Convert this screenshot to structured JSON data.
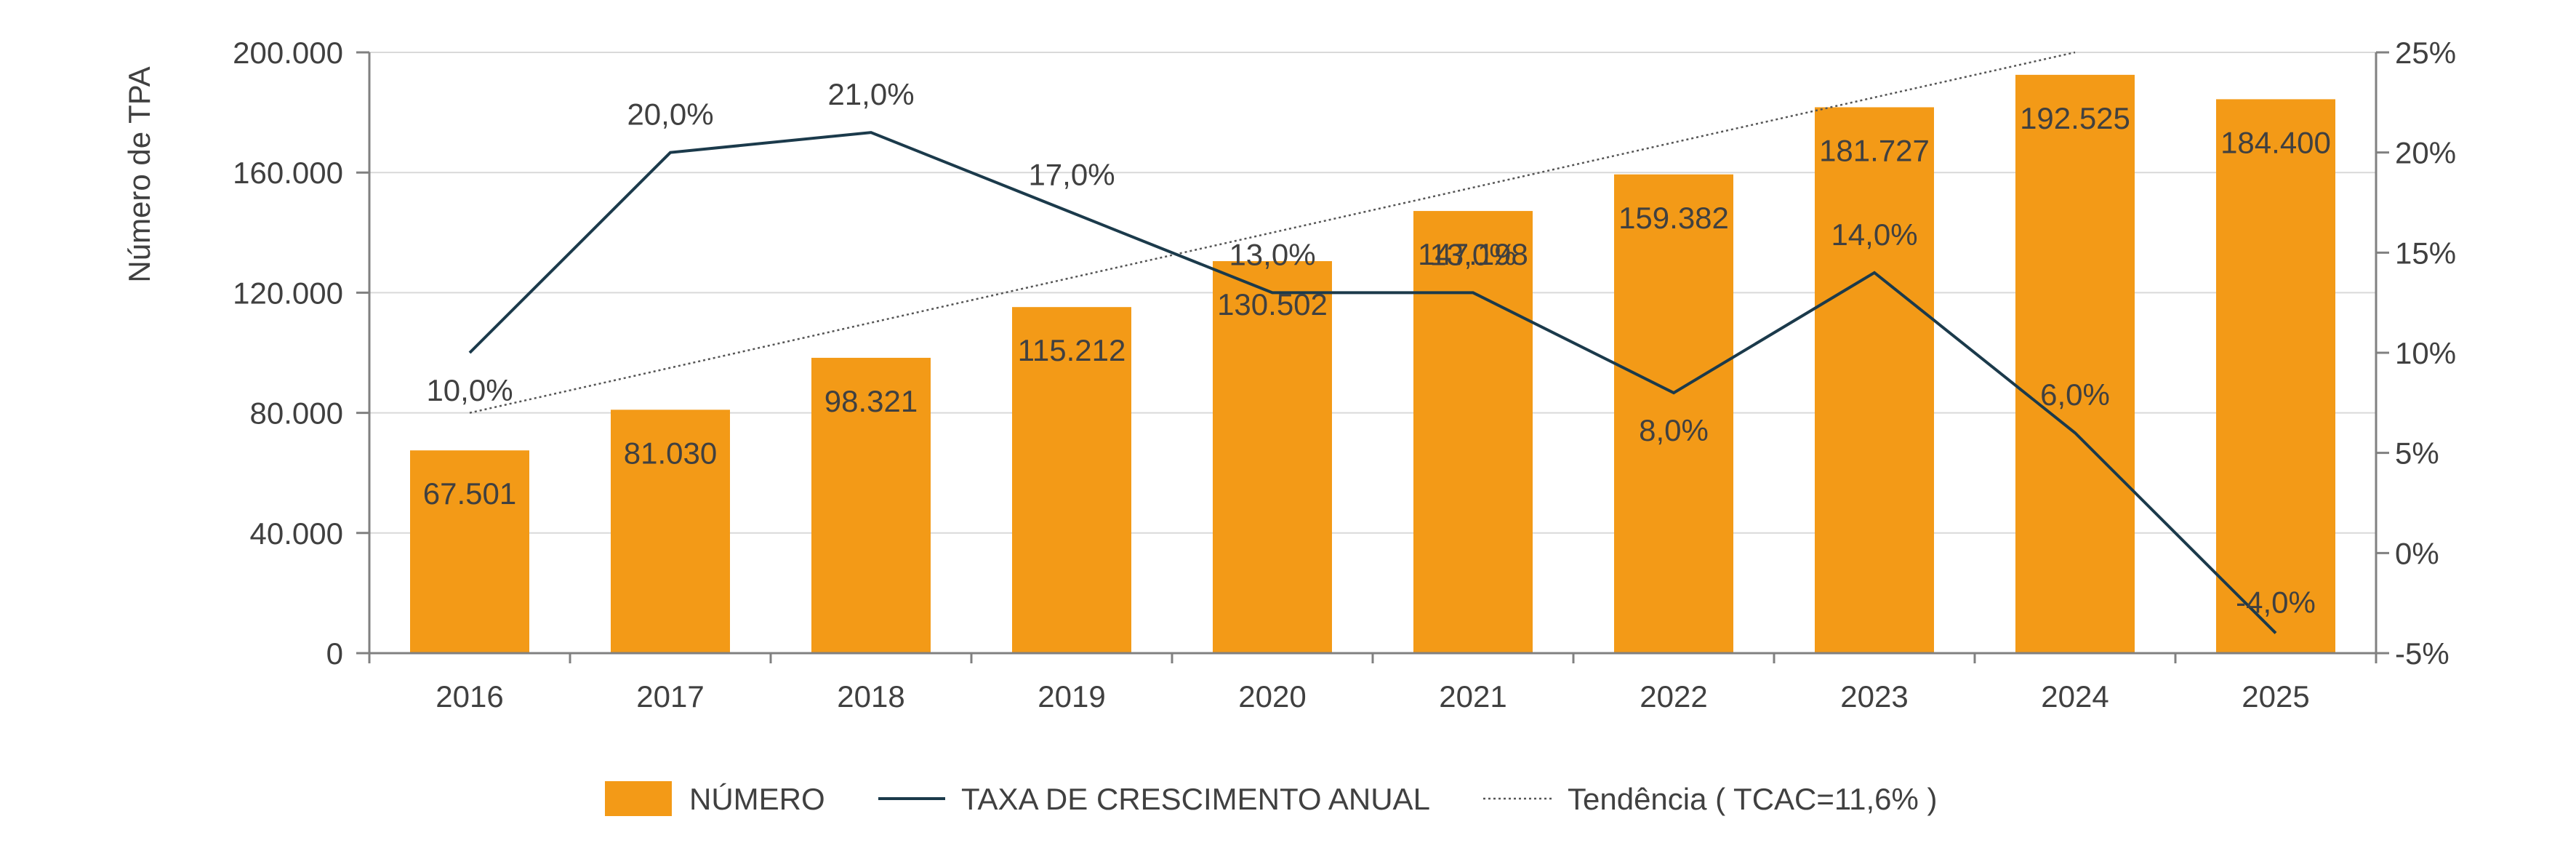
{
  "chart_data": {
    "type": "bar",
    "categories": [
      "2016",
      "2017",
      "2018",
      "2019",
      "2020",
      "2021",
      "2022",
      "2023",
      "2024",
      "2025"
    ],
    "series": [
      {
        "name": "NÚMERO",
        "type": "bar",
        "axis": "left",
        "color": "#F39A17",
        "values": [
          67501,
          81030,
          98321,
          115212,
          130502,
          147198,
          159382,
          181727,
          192525,
          184400
        ],
        "labels": [
          "67.501",
          "81.030",
          "98.321",
          "115.212",
          "130.502",
          "147.198",
          "159.382",
          "181.727",
          "192.525",
          "184.400"
        ]
      },
      {
        "name": "TAXA DE CRESCIMENTO ANUAL",
        "type": "line",
        "axis": "right",
        "color": "#1B3A4B",
        "values": [
          10,
          20,
          21,
          17,
          13,
          13,
          8,
          14,
          6,
          -4
        ],
        "labels": [
          "10,0%",
          "20,0%",
          "21,0%",
          "17,0%",
          "13,0%",
          "13,0%",
          "8,0%",
          "14,0%",
          "6,0%",
          "-4,0%"
        ]
      },
      {
        "name": "Tendência ( TCAC=11,6% )",
        "type": "trendline",
        "axis": "left",
        "style": "dotted",
        "color": "#555555",
        "start": {
          "x": "2016",
          "y": 80000
        },
        "end": {
          "x": "2024",
          "y": 200000
        }
      }
    ],
    "y_left": {
      "label": "Número de TPA",
      "range": [
        0,
        200000
      ],
      "ticks": [
        0,
        40000,
        80000,
        120000,
        160000,
        200000
      ],
      "tick_labels": [
        "0",
        "40.000",
        "80.000",
        "120.000",
        "160.000",
        "200.000"
      ]
    },
    "y_right": {
      "label": "",
      "range": [
        -5,
        25
      ],
      "ticks": [
        -5,
        0,
        5,
        10,
        15,
        20,
        25
      ],
      "tick_labels": [
        "-5%",
        "0%",
        "5%",
        "10%",
        "15%",
        "20%",
        "25%"
      ]
    },
    "grid": true,
    "legend": {
      "position": "bottom",
      "items": [
        "NÚMERO",
        "TAXA DE CRESCIMENTO ANUAL",
        "Tendência ( TCAC=11,6% )"
      ]
    }
  }
}
